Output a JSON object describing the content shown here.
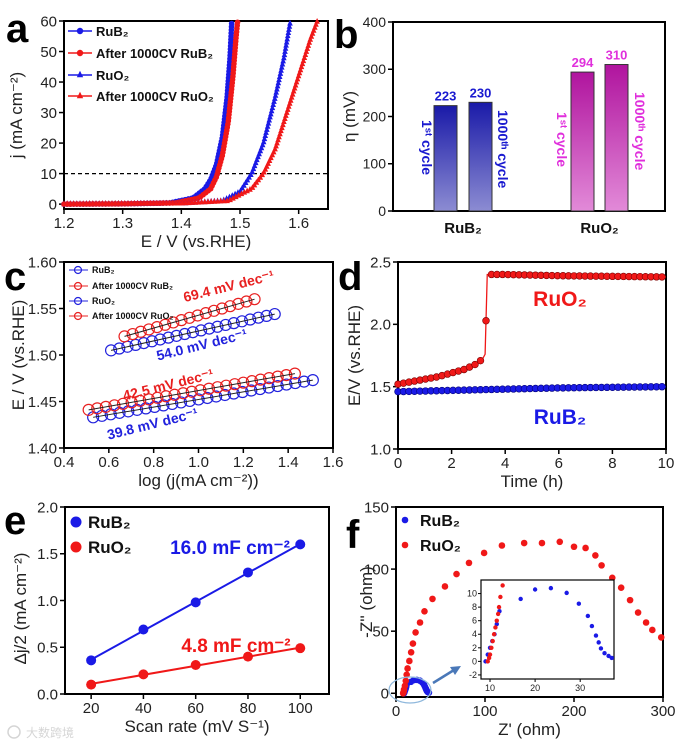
{
  "figure": {
    "watermark": "大数跨境"
  },
  "chart_data": [
    {
      "panel_label": "a",
      "type": "line",
      "xlabel": "E / V (vs.RHE)",
      "ylabel": "j (mA cm⁻²)",
      "xlim": [
        1.2,
        1.65
      ],
      "ylim": [
        -1.6,
        60
      ],
      "x_ticks": [
        "1.2",
        "1.3",
        "1.4",
        "1.5",
        "1.6"
      ],
      "y_ticks": [
        "0",
        "10",
        "20",
        "30",
        "40",
        "50",
        "60"
      ],
      "reference_line": {
        "y": 10,
        "style": "dashed"
      },
      "legend_position": "top-left",
      "series": [
        {
          "name": "RuB₂",
          "color": "#1a1ae6",
          "marker": "circle",
          "points": [
            [
              1.2,
              0
            ],
            [
              1.3,
              0.1
            ],
            [
              1.38,
              0.4
            ],
            [
              1.42,
              2
            ],
            [
              1.44,
              5
            ],
            [
              1.45,
              8
            ],
            [
              1.46,
              13
            ],
            [
              1.47,
              22
            ],
            [
              1.478,
              35
            ],
            [
              1.483,
              48
            ],
            [
              1.486,
              60
            ]
          ]
        },
        {
          "name": "After 1000CV RuB₂",
          "color": "#f01818",
          "marker": "circle",
          "points": [
            [
              1.2,
              0
            ],
            [
              1.3,
              0.1
            ],
            [
              1.39,
              0.4
            ],
            [
              1.43,
              2
            ],
            [
              1.45,
              5
            ],
            [
              1.46,
              9
            ],
            [
              1.47,
              16
            ],
            [
              1.48,
              27
            ],
            [
              1.488,
              42
            ],
            [
              1.493,
              54
            ],
            [
              1.496,
              60
            ]
          ]
        },
        {
          "name": "RuO₂",
          "color": "#1a1ae6",
          "marker": "triangle",
          "points": [
            [
              1.2,
              0
            ],
            [
              1.4,
              0.2
            ],
            [
              1.47,
              1
            ],
            [
              1.5,
              4
            ],
            [
              1.52,
              10
            ],
            [
              1.54,
              20
            ],
            [
              1.56,
              35
            ],
            [
              1.575,
              48
            ],
            [
              1.586,
              60
            ]
          ]
        },
        {
          "name": "After 1000CV RuO₂",
          "color": "#f01818",
          "marker": "triangle",
          "points": [
            [
              1.2,
              0
            ],
            [
              1.4,
              0.2
            ],
            [
              1.48,
              1
            ],
            [
              1.52,
              5
            ],
            [
              1.54,
              10
            ],
            [
              1.56,
              18
            ],
            [
              1.58,
              30
            ],
            [
              1.6,
              42
            ],
            [
              1.62,
              54
            ],
            [
              1.632,
              60
            ]
          ]
        }
      ]
    },
    {
      "panel_label": "b",
      "type": "bar",
      "ylabel": "η (mV)",
      "ylim": [
        0,
        400
      ],
      "y_ticks": [
        "0",
        "100",
        "200",
        "300",
        "400"
      ],
      "categories": [
        "RuB₂",
        "RuO₂"
      ],
      "category_colors": [
        "#1a1aa8",
        "#c21cb8"
      ],
      "label_colors": [
        "#1a1ad0",
        "#e030dc"
      ],
      "series": [
        {
          "name": "1ˢᵗ cycle",
          "values": [
            223,
            294
          ]
        },
        {
          "name": "1000ᵗʰ cycle",
          "values": [
            230,
            310
          ]
        }
      ]
    },
    {
      "panel_label": "c",
      "type": "scatter",
      "xlabel": "log (j(mA cm⁻²))",
      "ylabel": "E / V (vs.RHE)",
      "xlim": [
        0.4,
        1.6
      ],
      "ylim": [
        1.4,
        1.6
      ],
      "x_ticks": [
        "0.4",
        "0.6",
        "0.8",
        "1.0",
        "1.2",
        "1.4",
        "1.6"
      ],
      "y_ticks": [
        "1.40",
        "1.45",
        "1.50",
        "1.55",
        "1.60"
      ],
      "legend_position": "top-left",
      "series": [
        {
          "name": "RuB₂",
          "color": "#2222dd",
          "x_range": [
            0.53,
            1.51
          ],
          "y_range": [
            1.433,
            1.473
          ],
          "n_points": 26,
          "slope_label": "39.8 mV dec⁻¹"
        },
        {
          "name": "After 1000CV RuB₂",
          "color": "#e82020",
          "x_range": [
            0.51,
            1.43
          ],
          "y_range": [
            1.441,
            1.48
          ],
          "n_points": 25,
          "slope_label": "42.5 mV dec⁻¹"
        },
        {
          "name": "RuO₂",
          "color": "#2222dd",
          "x_range": [
            0.61,
            1.34
          ],
          "y_range": [
            1.505,
            1.544
          ],
          "n_points": 21,
          "slope_label": "54.0 mV dec⁻¹"
        },
        {
          "name": "After 1000CV RuO₂",
          "color": "#e82020",
          "x_range": [
            0.67,
            1.25
          ],
          "y_range": [
            1.52,
            1.56
          ],
          "n_points": 17,
          "slope_label": "69.4 mV dec⁻¹"
        }
      ]
    },
    {
      "panel_label": "d",
      "type": "line",
      "xlabel": "Time (h)",
      "ylabel": "E/V (vs.RHE)",
      "xlim": [
        0,
        10
      ],
      "ylim": [
        1.0,
        2.5
      ],
      "x_ticks": [
        "0",
        "2",
        "4",
        "6",
        "8",
        "10"
      ],
      "y_ticks": [
        "1.0",
        "1.5",
        "2.0",
        "2.5"
      ],
      "series": [
        {
          "name": "RuO₂",
          "color": "#f01818",
          "points": [
            [
              0,
              1.52
            ],
            [
              0.5,
              1.54
            ],
            [
              1,
              1.56
            ],
            [
              1.5,
              1.58
            ],
            [
              2,
              1.61
            ],
            [
              2.5,
              1.64
            ],
            [
              2.9,
              1.68
            ],
            [
              3.15,
              1.72
            ],
            [
              3.25,
              1.76
            ],
            [
              3.33,
              2.4
            ],
            [
              4,
              2.4
            ],
            [
              6,
              2.39
            ],
            [
              8,
              2.385
            ],
            [
              10,
              2.38
            ]
          ]
        },
        {
          "name": "RuB₂",
          "color": "#1a1ae6",
          "points": [
            [
              0,
              1.46
            ],
            [
              2,
              1.47
            ],
            [
              4,
              1.48
            ],
            [
              6,
              1.49
            ],
            [
              8,
              1.495
            ],
            [
              10,
              1.5
            ]
          ]
        }
      ]
    },
    {
      "panel_label": "e",
      "type": "scatter",
      "xlabel": "Scan rate (mV S⁻¹)",
      "ylabel": "Δj/2 (mA cm⁻²)",
      "xlim": [
        10,
        111
      ],
      "ylim": [
        0,
        2.0
      ],
      "x_ticks": [
        "20",
        "40",
        "60",
        "80",
        "100"
      ],
      "y_ticks": [
        "0.0",
        "0.5",
        "1.0",
        "1.5",
        "2.0"
      ],
      "legend_position": "top-left",
      "x": [
        20,
        40,
        60,
        80,
        100
      ],
      "series": [
        {
          "name": "RuB₂",
          "color": "#1a1ae6",
          "values": [
            0.36,
            0.69,
            0.98,
            1.3,
            1.6
          ],
          "fit_label": "16.0 mF cm⁻²"
        },
        {
          "name": "RuO₂",
          "color": "#f01818",
          "values": [
            0.1,
            0.21,
            0.31,
            0.4,
            0.49
          ],
          "fit_label": "4.8 mF cm⁻²"
        }
      ]
    },
    {
      "panel_label": "f",
      "type": "scatter",
      "xlabel": "Z' (ohm)",
      "ylabel": "-Z'' (ohm)",
      "xlim": [
        0,
        300
      ],
      "ylim": [
        -3,
        150
      ],
      "x_ticks": [
        "0",
        "100",
        "200",
        "300"
      ],
      "y_ticks": [
        "0",
        "50",
        "100",
        "150"
      ],
      "legend_position": "top-left",
      "series": [
        {
          "name": "RuB₂",
          "color": "#1a1ae6",
          "points": [
            [
              9,
              0
            ],
            [
              9.5,
              1
            ],
            [
              10,
              2
            ],
            [
              10.5,
              3
            ],
            [
              11,
              4
            ],
            [
              11.5,
              5.5
            ],
            [
              12.1,
              7.4
            ],
            [
              16.8,
              9.2
            ],
            [
              20,
              10.6
            ],
            [
              23.5,
              10.8
            ],
            [
              27,
              10.1
            ],
            [
              29.7,
              8.5
            ],
            [
              31.7,
              6.7
            ],
            [
              32.6,
              5.2
            ],
            [
              33.5,
              3.8
            ],
            [
              34.1,
              2.8
            ],
            [
              34.6,
              1.9
            ],
            [
              35.4,
              1.2
            ],
            [
              36.3,
              0.8
            ],
            [
              37,
              0.5
            ]
          ]
        },
        {
          "name": "RuO₂",
          "color": "#f01818",
          "points": [
            [
              8,
              0
            ],
            [
              8.5,
              1
            ],
            [
              9,
              3
            ],
            [
              10,
              6
            ],
            [
              11,
              10
            ],
            [
              12,
              15
            ],
            [
              13,
              20
            ],
            [
              15,
              26
            ],
            [
              17,
              33
            ],
            [
              19,
              40
            ],
            [
              22,
              49
            ],
            [
              27,
              57
            ],
            [
              32,
              66
            ],
            [
              41,
              76
            ],
            [
              55,
              86
            ],
            [
              68,
              96
            ],
            [
              82,
              105
            ],
            [
              99,
              113
            ],
            [
              119,
              119
            ],
            [
              144,
              121
            ],
            [
              164,
              121
            ],
            [
              184,
              122
            ],
            [
              200,
              118
            ],
            [
              213,
              117
            ],
            [
              224,
              111
            ],
            [
              231,
              103
            ],
            [
              243,
              93
            ],
            [
              253,
              85
            ],
            [
              263,
              75
            ],
            [
              272,
              65
            ],
            [
              281,
              57
            ],
            [
              288,
              51
            ],
            [
              298,
              45
            ]
          ]
        }
      ],
      "inset": {
        "xlim": [
          8,
          37.5
        ],
        "ylim": [
          -2.6,
          12
        ],
        "x_ticks": [
          "10",
          "20",
          "30"
        ],
        "y_ticks": [
          "-2",
          "0",
          "2",
          "4",
          "6",
          "8",
          "10"
        ],
        "red_points": [
          [
            9.5,
            0
          ],
          [
            9.8,
            0.5
          ],
          [
            10,
            1
          ],
          [
            10.3,
            2
          ],
          [
            10.6,
            3
          ],
          [
            10.9,
            4
          ],
          [
            11.2,
            5
          ],
          [
            11.5,
            6
          ],
          [
            11.8,
            7
          ],
          [
            12,
            8
          ],
          [
            12.3,
            9.5
          ],
          [
            12.8,
            11.2
          ]
        ]
      }
    }
  ]
}
